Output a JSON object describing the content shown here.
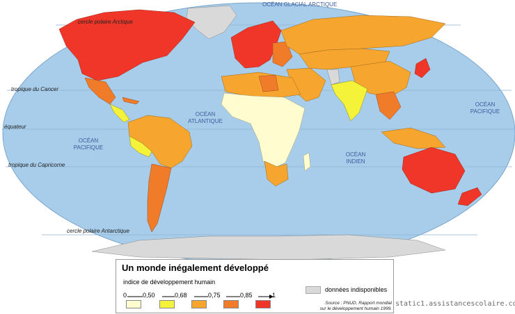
{
  "map": {
    "oceans": {
      "arctic": "OCÉAN GLACIAL ARCTIQUE",
      "atlantic_line1": "OCÉAN",
      "atlantic_line2": "ATLANTIQUE",
      "pacific_west_line1": "OCÉAN",
      "pacific_west_line2": "PACIFIQUE",
      "pacific_east_line1": "OCÉAN",
      "pacific_east_line2": "PACIFIQUE",
      "indian_line1": "OCÉAN",
      "indian_line2": "INDIEN"
    },
    "latitudes": {
      "arctic_circle": "cercle polaire Arctique",
      "tropic_cancer": "tropique du Cancer",
      "equator": "équateur",
      "tropic_capricorn": "tropique du Capricorne",
      "antarctic_circle": "cercle polaire Antarctique"
    },
    "colors": {
      "ocean": "#a8cdea",
      "class1": "#fffccf",
      "class2": "#f5f23a",
      "class3": "#f6a52f",
      "class4": "#f07c2a",
      "class5": "#ef3628",
      "nodata": "#d9d9d9"
    }
  },
  "legend": {
    "title": "Un monde inégalement développé",
    "subtitle": "indice de développement humain",
    "ticks": [
      "0",
      "0,50",
      "0,68",
      "0,75",
      "0,85",
      "1"
    ],
    "no_data": "données indisponibles",
    "source_line1": "Source : PNUD, Rapport mondial",
    "source_line2": "sur le développement humain 1999."
  },
  "credit": "static1.assistancescolaire.com"
}
